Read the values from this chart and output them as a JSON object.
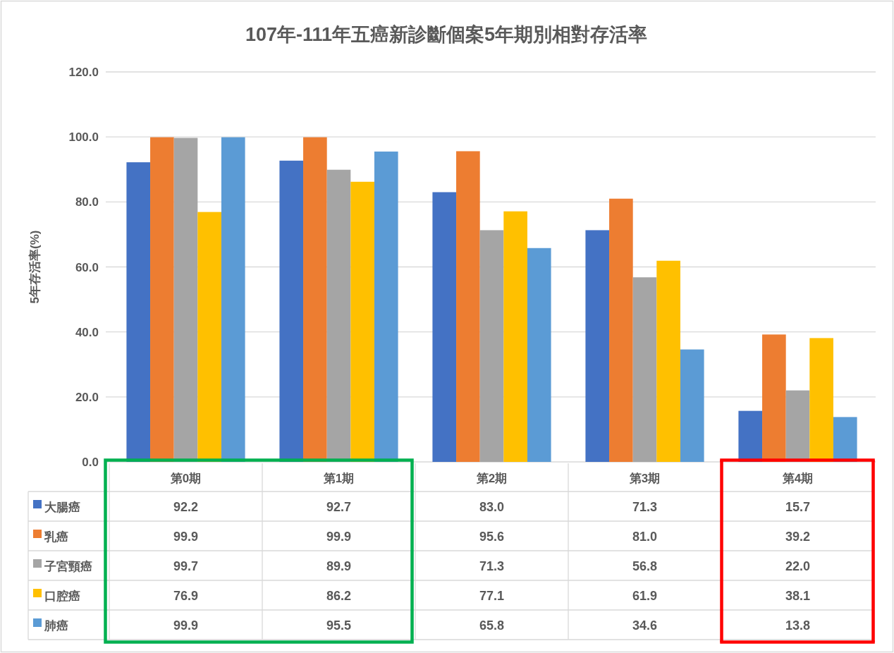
{
  "chart_data": {
    "type": "bar",
    "title": "107年-111年五癌新診斷個案5年期別相對存活率",
    "ylabel": "5年存活率(%)",
    "categories": [
      "第0期",
      "第1期",
      "第2期",
      "第3期",
      "第4期"
    ],
    "series": [
      {
        "name": "大腸癌",
        "color": "#4472c4",
        "values": [
          92.2,
          92.7,
          83.0,
          71.3,
          15.7
        ],
        "value_labels": [
          "92.2",
          "92.7",
          "83.0",
          "71.3",
          "15.7"
        ]
      },
      {
        "name": "乳癌",
        "color": "#ed7d31",
        "values": [
          99.9,
          99.9,
          95.6,
          81.0,
          39.2
        ],
        "value_labels": [
          "99.9",
          "99.9",
          "95.6",
          "81.0",
          "39.2"
        ]
      },
      {
        "name": "子宮頸癌",
        "color": "#a5a5a5",
        "values": [
          99.7,
          89.9,
          71.3,
          56.8,
          22.0
        ],
        "value_labels": [
          "99.7",
          "89.9",
          "71.3",
          "56.8",
          "22.0"
        ]
      },
      {
        "name": "口腔癌",
        "color": "#ffc000",
        "values": [
          76.9,
          86.2,
          77.1,
          61.9,
          38.1
        ],
        "value_labels": [
          "76.9",
          "86.2",
          "77.1",
          "61.9",
          "38.1"
        ]
      },
      {
        "name": "肺癌",
        "color": "#5b9bd5",
        "values": [
          99.9,
          95.5,
          65.8,
          34.6,
          13.8
        ],
        "value_labels": [
          "99.9",
          "95.5",
          "65.8",
          "34.6",
          "13.8"
        ]
      }
    ],
    "ylim": [
      0,
      120
    ],
    "yticks": [
      {
        "value": 0,
        "label": "0.0"
      },
      {
        "value": 20,
        "label": "20.0"
      },
      {
        "value": 40,
        "label": "40.0"
      },
      {
        "value": 60,
        "label": "60.0"
      },
      {
        "value": 80,
        "label": "80.0"
      },
      {
        "value": 100,
        "label": "100.0"
      },
      {
        "value": 120,
        "label": "120.0"
      }
    ],
    "grid": "y",
    "legend": "bottom"
  }
}
